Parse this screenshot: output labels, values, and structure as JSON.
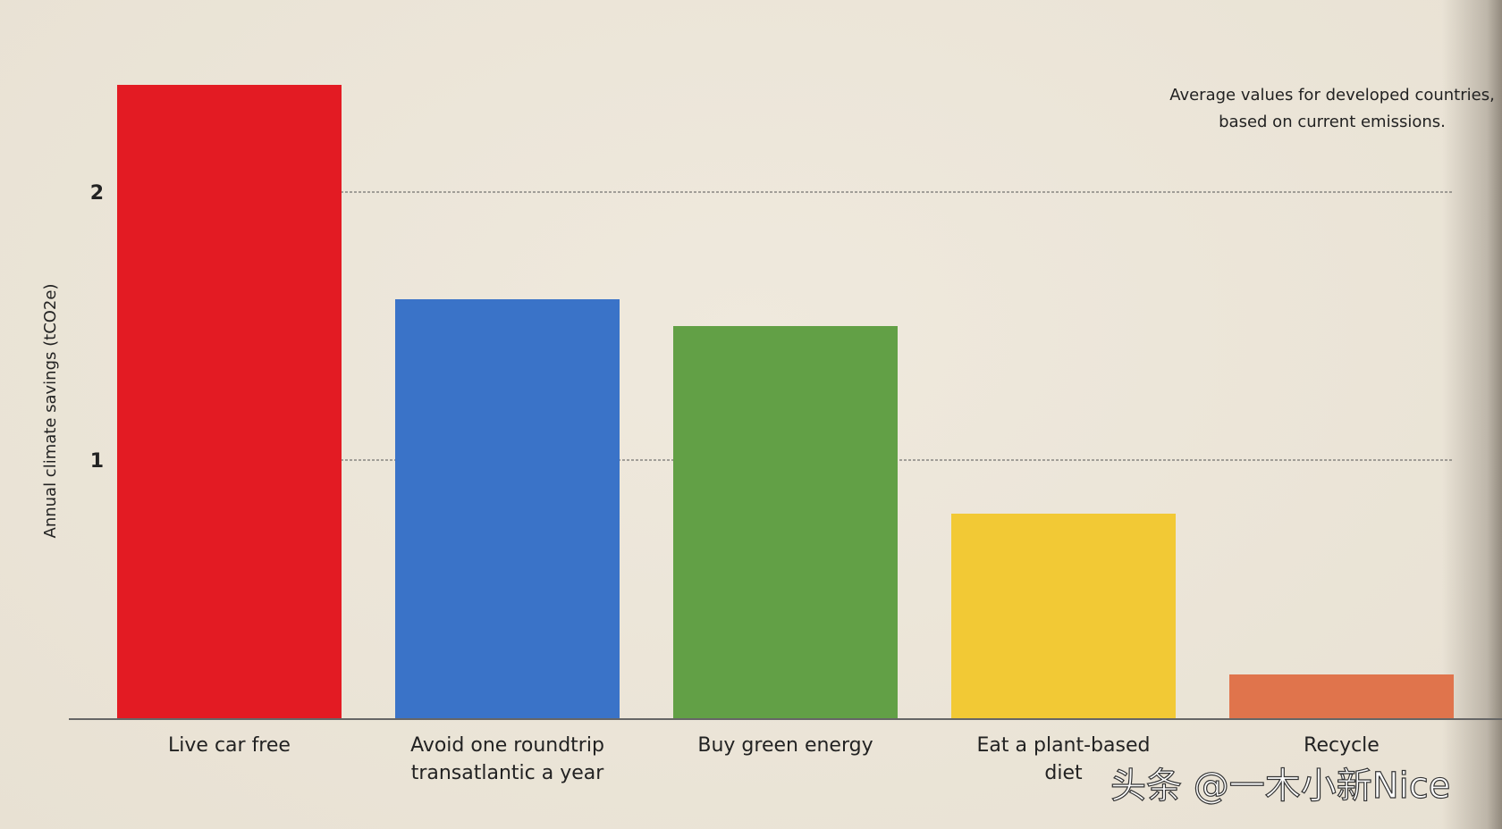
{
  "chart_data": {
    "type": "bar",
    "categories": [
      [
        "Live car free"
      ],
      [
        "Avoid one roundtrip",
        "transatlantic a year"
      ],
      [
        "Buy green energy"
      ],
      [
        "Eat a plant-based",
        "diet"
      ],
      [
        "Recycle"
      ]
    ],
    "values": [
      2.4,
      1.6,
      1.5,
      0.8,
      0.2
    ],
    "colors": [
      "#e31b23",
      "#3a73c8",
      "#62a046",
      "#f2c935",
      "#e0744c"
    ],
    "ylabel": "Annual climate savings (tCO2e)",
    "yticks": [
      "1",
      "2"
    ],
    "ylim": [
      0,
      2.5
    ],
    "grid": "dashed horizontal at ticks",
    "annotation": [
      "Average values for developed countries,",
      "based on current emissions."
    ]
  },
  "watermark": "头条 @一木小新Nice"
}
